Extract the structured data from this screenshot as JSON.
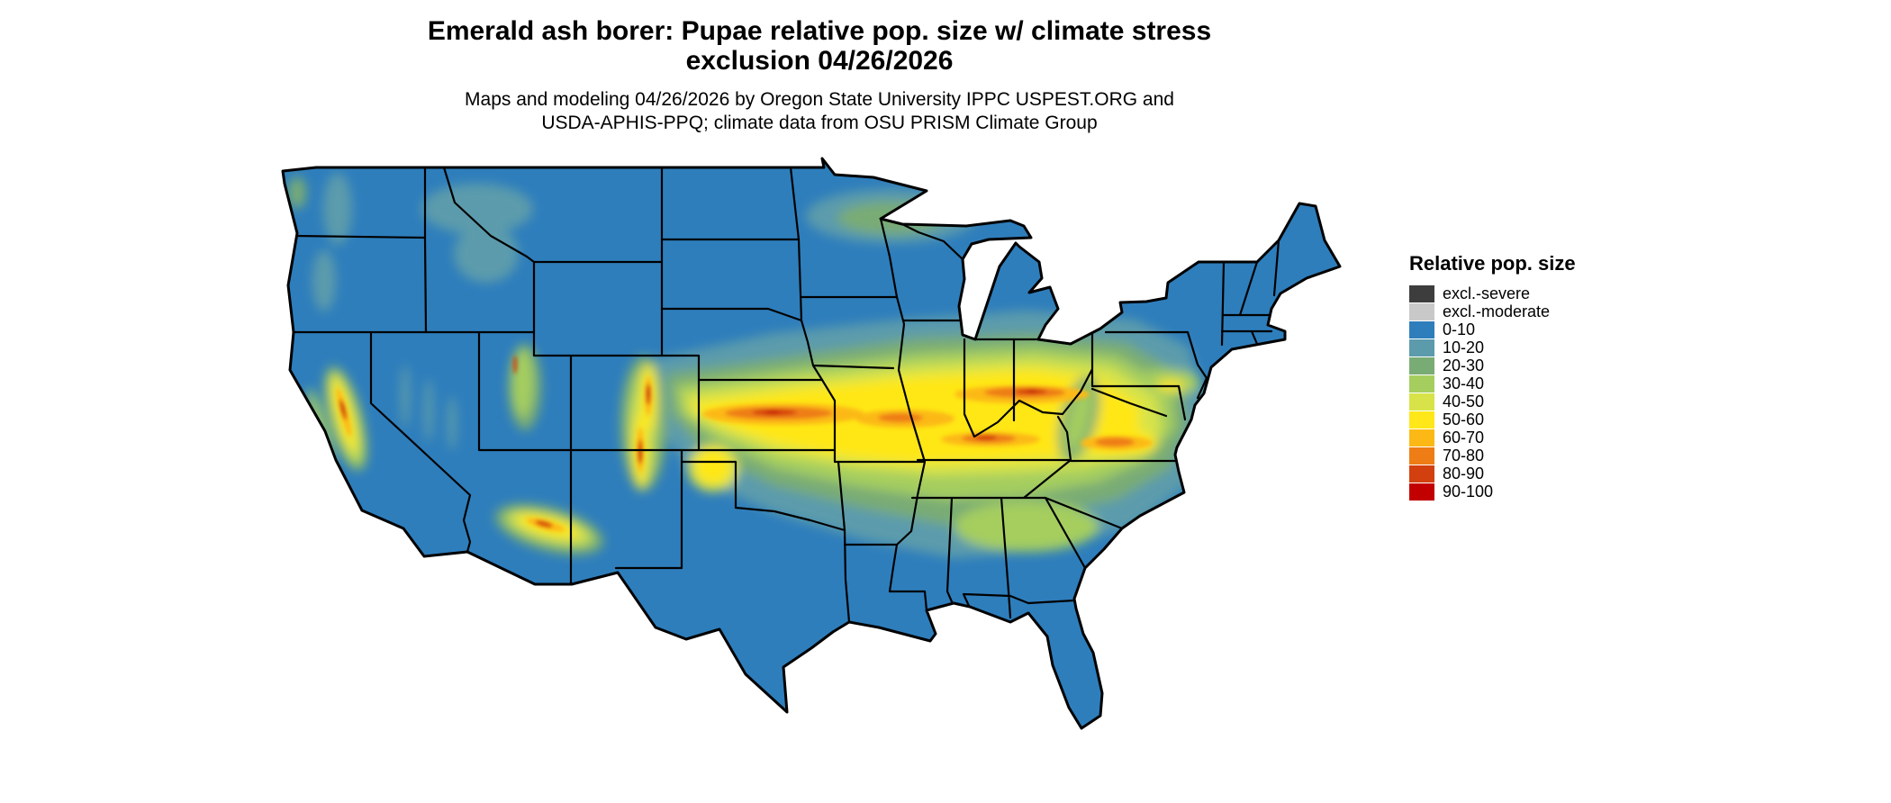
{
  "title": {
    "line1": "Emerald ash borer: Pupae relative pop. size w/ climate stress",
    "line2": "exclusion 04/26/2026"
  },
  "subtitle": {
    "line1": "Maps and modeling 04/26/2026 by Oregon State University IPPC USPEST.ORG and",
    "line2": "USDA-APHIS-PPQ; climate data from OSU PRISM Climate Group"
  },
  "legend": {
    "title": "Relative pop. size",
    "entries": [
      {
        "label": "excl.-severe",
        "color": "#3d3d3d"
      },
      {
        "label": "excl.-moderate",
        "color": "#c9c9c9"
      },
      {
        "label": "0-10",
        "color": "#2e7ebc"
      },
      {
        "label": "10-20",
        "color": "#5b9bac"
      },
      {
        "label": "20-30",
        "color": "#79ac74"
      },
      {
        "label": "30-40",
        "color": "#a5ce5f"
      },
      {
        "label": "40-50",
        "color": "#d7e348"
      },
      {
        "label": "50-60",
        "color": "#ffe719"
      },
      {
        "label": "60-70",
        "color": "#fcb915"
      },
      {
        "label": "70-80",
        "color": "#ee7d15"
      },
      {
        "label": "80-90",
        "color": "#d3400f"
      },
      {
        "label": "90-100",
        "color": "#c30000"
      }
    ]
  },
  "chart_data": {
    "type": "heatmap",
    "subtype": "geographic-raster-choropleth",
    "region": "Contiguous United States with state boundaries",
    "title": "Emerald ash borer: Pupae relative pop. size w/ climate stress exclusion 04/26/2026",
    "legend_title": "Relative pop. size",
    "classes": [
      "excl.-severe",
      "excl.-moderate",
      "0-10",
      "10-20",
      "20-30",
      "30-40",
      "40-50",
      "50-60",
      "60-70",
      "70-80",
      "80-90",
      "90-100"
    ],
    "class_colors": [
      "#3d3d3d",
      "#c9c9c9",
      "#2e7ebc",
      "#5b9bac",
      "#79ac74",
      "#a5ce5f",
      "#d7e348",
      "#ffe719",
      "#fcb915",
      "#ee7d15",
      "#d3400f",
      "#c30000"
    ],
    "legend_position": "right",
    "pattern_summary": "High relative population sizes (50-90, yellow-orange-red) form an east-west band from eastern Colorado and Kansas through Missouri, Illinois, Indiana, Ohio, Kentucky, Tennessee and Virginia; moderate values occur in the Sierra Nevada, Arizona Mogollon Rim, New Mexico and Colorado mountains, the Texas panhandle and the southeastern piedmont; low values (0-10, blue) cover the northern plains, Rockies basins, Gulf Coast, Florida, southern Texas, the Great Lakes north and the Northeast."
  }
}
